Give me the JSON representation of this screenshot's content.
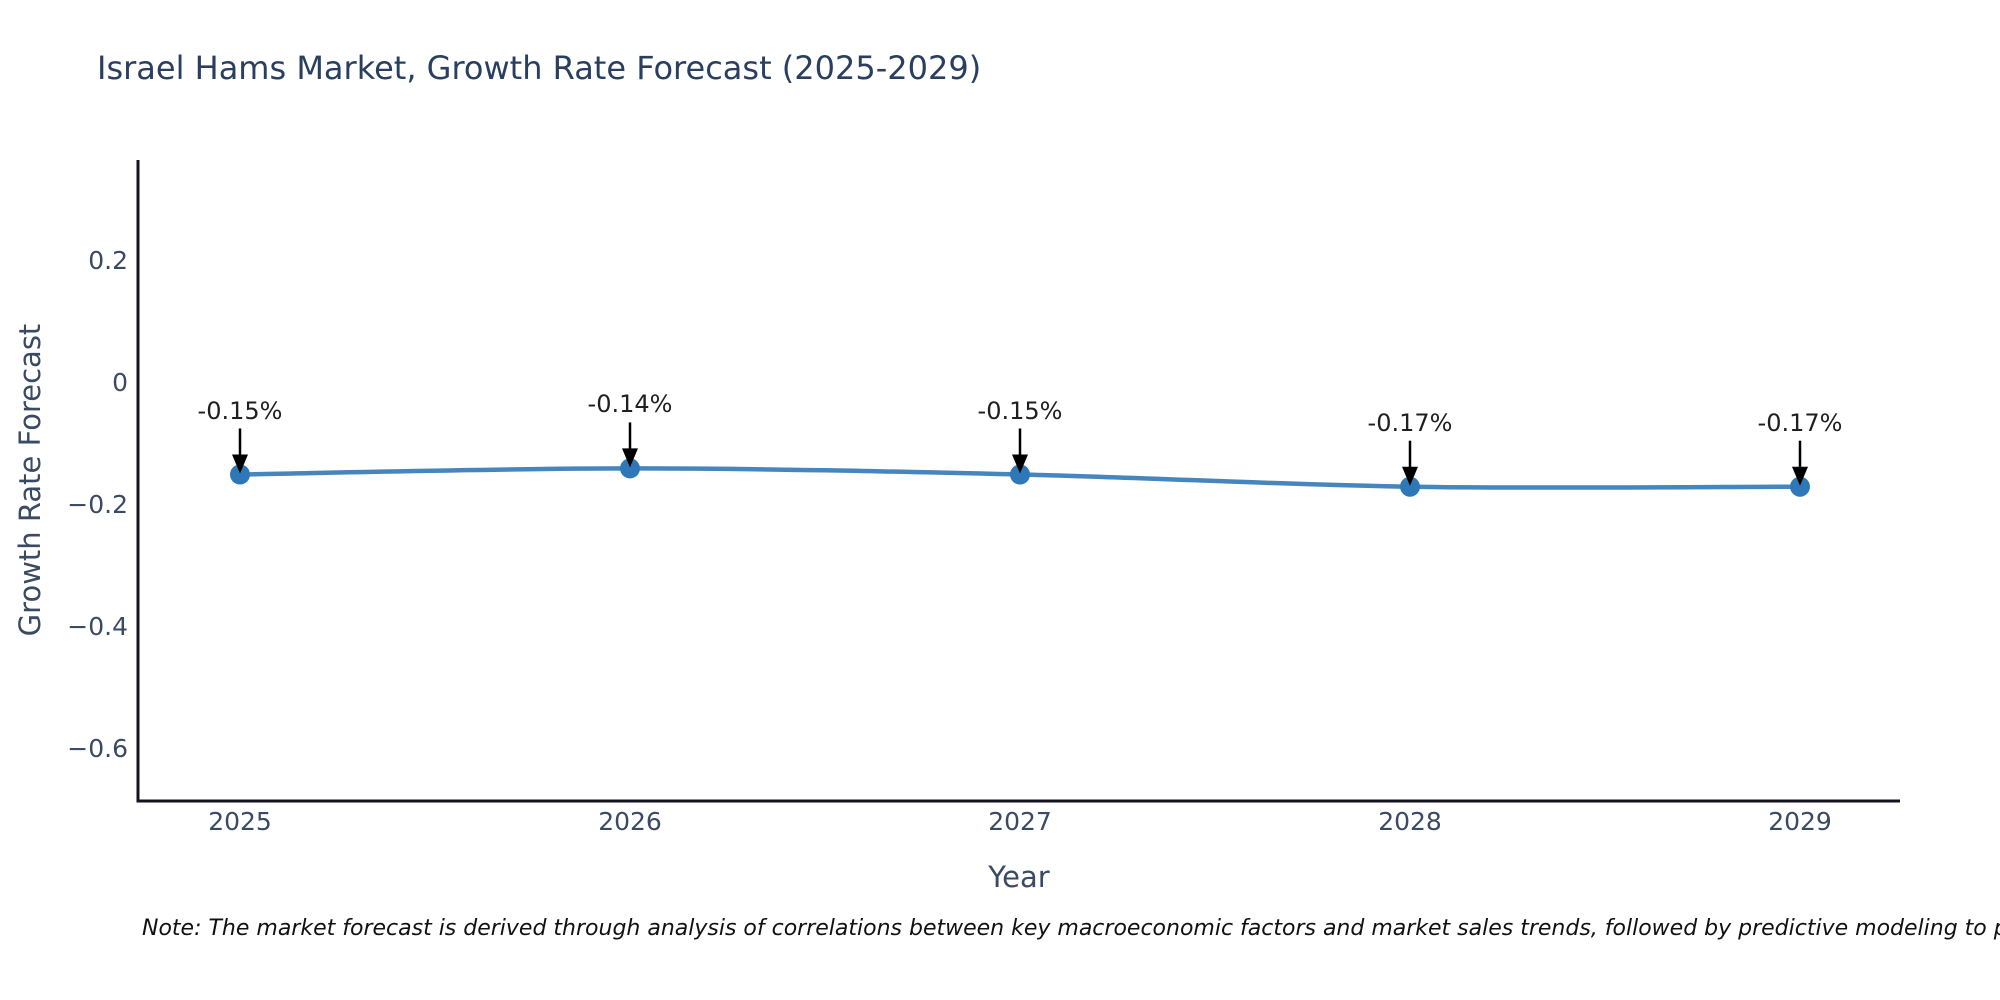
{
  "chart_data": {
    "type": "line",
    "title": "Israel Hams Market, Growth Rate Forecast (2025-2029)",
    "xlabel": "Year",
    "ylabel": "Growth Rate Forecast",
    "categories": [
      "2025",
      "2026",
      "2027",
      "2028",
      "2029"
    ],
    "values": [
      -0.15,
      -0.14,
      -0.15,
      -0.17,
      -0.17
    ],
    "point_labels": [
      "-0.15%",
      "-0.14%",
      "-0.15%",
      "-0.17%",
      "-0.17%"
    ],
    "yticks": [
      {
        "value": 0.2,
        "label": "0.2"
      },
      {
        "value": 0,
        "label": "0"
      },
      {
        "value": -0.2,
        "label": "−0.2"
      },
      {
        "value": -0.4,
        "label": "−0.4"
      },
      {
        "value": -0.6,
        "label": "−0.6"
      }
    ],
    "ylim": [
      -0.69,
      0.37
    ],
    "grid": false,
    "legend": false,
    "line_shape": "spline",
    "colors": {
      "line": "#4786bd",
      "marker": "#2f78b8",
      "arrow": "#000000",
      "axis": "#13131f",
      "title_text": "#2a3f5f",
      "tick_text": "#3b4a63",
      "annotation_text": "#1f1f1f",
      "note_text": "#111111",
      "background": "#ffffff"
    },
    "note": "Note: The market forecast is derived through analysis of correlations between key macroeconomic factors and market sales trends, followed by predictive modeling to project future sal"
  }
}
